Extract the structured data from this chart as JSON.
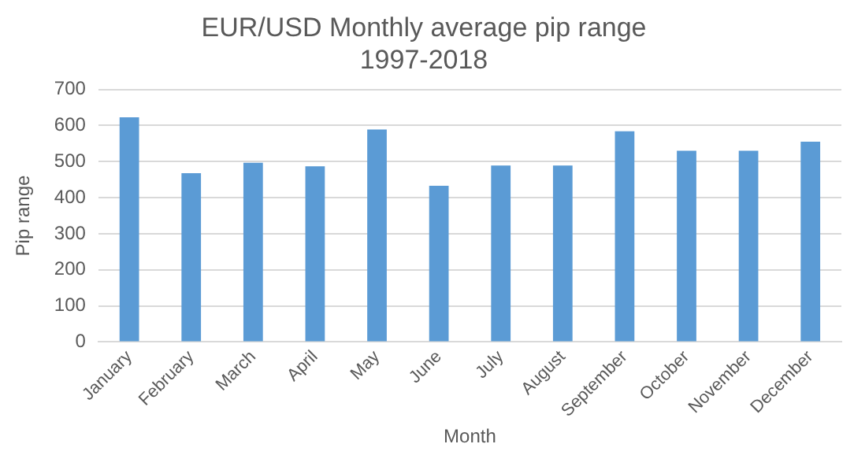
{
  "chart_data": {
    "type": "bar",
    "title": "EUR/USD Monthly average pip range\n1997-2018",
    "xlabel": "Month",
    "ylabel": "Pip range",
    "categories": [
      "January",
      "February",
      "March",
      "April",
      "May",
      "June",
      "July",
      "August",
      "September",
      "October",
      "November",
      "December"
    ],
    "values": [
      623,
      468,
      497,
      487,
      589,
      433,
      489,
      489,
      584,
      530,
      530,
      555
    ],
    "color": "#5b9bd5",
    "ylim": [
      0,
      700
    ],
    "yticks": [
      0,
      100,
      200,
      300,
      400,
      500,
      600,
      700
    ],
    "grid": "y"
  }
}
